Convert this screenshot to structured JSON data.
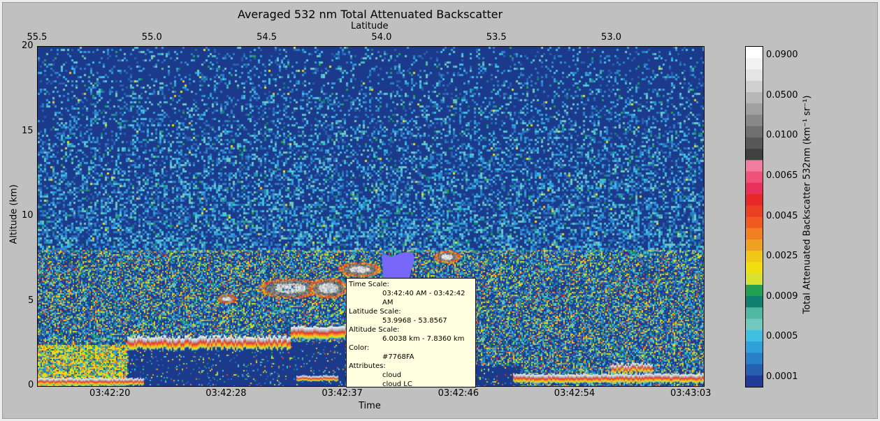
{
  "chart_data": {
    "type": "heatmap",
    "title": "Averaged 532 nm Total Attenuated Backscatter",
    "top_axis": {
      "label": "Latitude",
      "range": [
        55.5,
        52.6
      ],
      "ticks": [
        "55.5",
        "55.0",
        "54.5",
        "54.0",
        "53.5",
        "53.0"
      ]
    },
    "bottom_axis": {
      "label": "Time",
      "ticks": [
        "03:42:20",
        "03:42:28",
        "03:42:37",
        "03:42:46",
        "03:42:54",
        "03:43:03"
      ]
    },
    "y_axis": {
      "label": "Altitude (km)",
      "range": [
        0,
        20
      ],
      "ticks": [
        "0",
        "5",
        "10",
        "15",
        "20"
      ]
    },
    "colorbar": {
      "label": "Total Attenuated Backscatter 532nm (km⁻¹ sr⁻¹)",
      "ticks": [
        "0.0900",
        "0.0500",
        "0.0100",
        "0.0065",
        "0.0045",
        "0.0025",
        "0.0009",
        "0.0005",
        "0.0001"
      ],
      "colors": [
        "#ffffff",
        "#f2f2f2",
        "#e4e4e4",
        "#d0d0d0",
        "#b8b8b8",
        "#a0a0a0",
        "#888888",
        "#707070",
        "#585858",
        "#404040",
        "#f07ca0",
        "#f0507a",
        "#e8305a",
        "#e82828",
        "#e84020",
        "#f05a20",
        "#f08020",
        "#f0a020",
        "#f0c818",
        "#f0e010",
        "#d8e030",
        "#20a050",
        "#108070",
        "#50b8a0",
        "#70c8c0",
        "#40c0e0",
        "#30a0d8",
        "#2880c8",
        "#2860b0",
        "#203c98"
      ]
    },
    "highlighted_region": {
      "color": "#7768FA"
    }
  },
  "tooltip": {
    "time_key": "Time Scale:",
    "time_val": "03:42:40 AM - 03:42:42 AM",
    "lat_key": "Latitude Scale:",
    "lat_val": "53.9968 - 53.8567",
    "alt_key": "Altitude Scale:",
    "alt_val": "6.0038 km - 7.8360 km",
    "color_key": "Color:",
    "color_val": "#7768FA",
    "attr_key": "Attributes:",
    "attr_val1": "cloud",
    "attr_val2": "cloud LC"
  }
}
